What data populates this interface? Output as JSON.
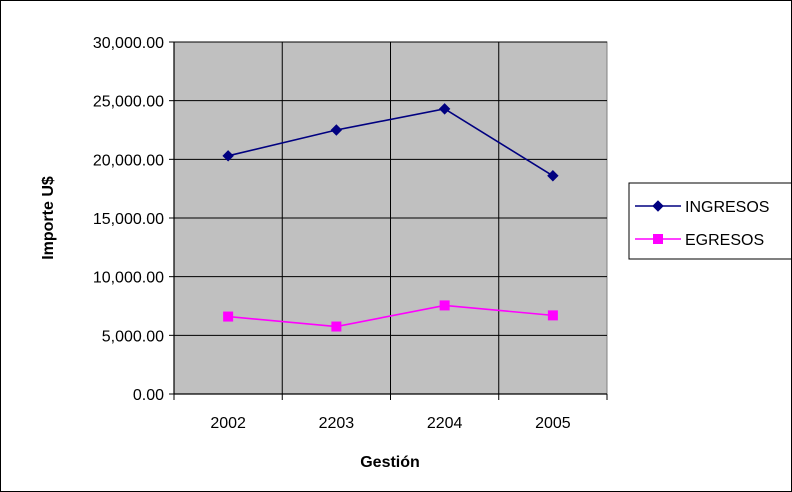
{
  "chart_data": {
    "type": "line",
    "categories": [
      "2002",
      "2203",
      "2204",
      "2005"
    ],
    "series": [
      {
        "name": "INGRESOS",
        "color": "#000080",
        "marker": "diamond",
        "values": [
          20300,
          22500,
          24300,
          18600
        ]
      },
      {
        "name": "EGRESOS",
        "color": "#ff00ff",
        "marker": "square",
        "values": [
          6600,
          5750,
          7550,
          6700
        ]
      }
    ],
    "title": "",
    "xlabel": "Gestión",
    "ylabel": "Importe U$",
    "ylim": [
      0,
      30000
    ],
    "yticks": [
      0,
      5000,
      10000,
      15000,
      20000,
      25000,
      30000
    ],
    "ytick_labels": [
      "0.00",
      "5,000.00",
      "10,000.00",
      "15,000.00",
      "20,000.00",
      "25,000.00",
      "30,000.00"
    ],
    "grid": true,
    "plot_background": "#c0c0c0",
    "legend_position": "right"
  }
}
